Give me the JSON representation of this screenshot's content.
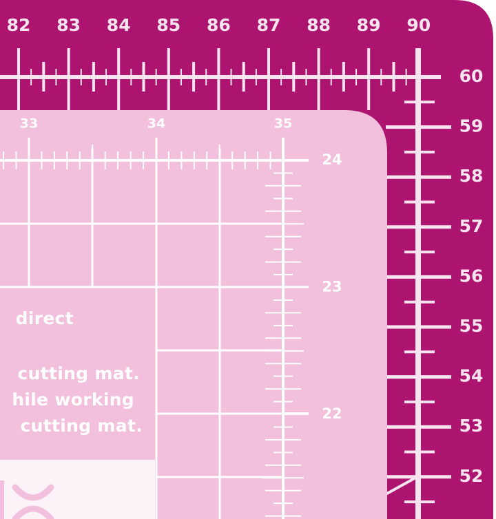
{
  "colors": {
    "outer_mat": "#ad1470",
    "inner_mat": "#f2bfdc",
    "lines": "#ffffff",
    "outer_lines": "#f7e4ef",
    "white_box": "#fcf3f9"
  },
  "outer_ruler": {
    "top_labels": [
      "82",
      "83",
      "84",
      "85",
      "86",
      "87",
      "88",
      "89",
      "90"
    ],
    "right_labels": [
      "60",
      "59",
      "58",
      "57",
      "56",
      "55",
      "54",
      "53",
      "52"
    ]
  },
  "inner_ruler": {
    "top_labels": [
      "33",
      "34",
      "35"
    ],
    "right_labels": [
      "24",
      "23",
      "22"
    ]
  },
  "info_text": {
    "lines": [
      "direct",
      "cutting mat.",
      "hile working",
      "cutting mat."
    ]
  },
  "icons": [
    "x-mark-icon"
  ]
}
